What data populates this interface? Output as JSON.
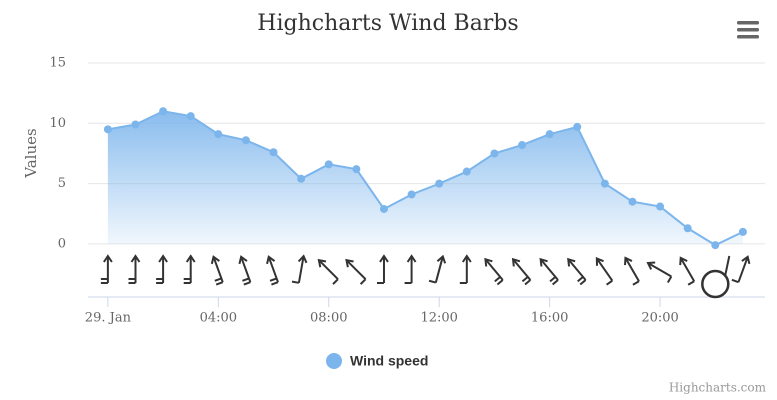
{
  "chart_data": {
    "type": "windbarb-area",
    "title": "Highcharts Wind Barbs",
    "y_label": "Values",
    "x": [
      0,
      1,
      2,
      3,
      4,
      5,
      6,
      7,
      8,
      9,
      10,
      11,
      12,
      13,
      14,
      15,
      16,
      17,
      18,
      19,
      20,
      21,
      22,
      23
    ],
    "series": [
      {
        "name": "Wind speed",
        "color": "#7cb5ec",
        "values": [
          9.5,
          9.9,
          11.0,
          10.6,
          9.1,
          8.6,
          7.6,
          5.4,
          6.6,
          6.2,
          2.9,
          4.1,
          5.0,
          6.0,
          7.5,
          8.2,
          9.1,
          9.7,
          5.0,
          3.5,
          3.1,
          1.3,
          -0.1,
          1.0
        ],
        "directions": [
          0,
          0,
          0,
          0,
          340,
          340,
          340,
          10,
          315,
          315,
          0,
          0,
          15,
          0,
          320,
          320,
          320,
          320,
          325,
          330,
          300,
          330,
          0,
          20
        ]
      }
    ],
    "xlim": [
      -0.72,
      23.8
    ],
    "ylim": [
      -4.4,
      15
    ],
    "yticks": [
      0,
      5,
      10,
      15
    ],
    "xticks": [
      {
        "value": 0,
        "label": "29. Jan"
      },
      {
        "value": 4,
        "label": "04:00"
      },
      {
        "value": 8,
        "label": "08:00"
      },
      {
        "value": 12,
        "label": "12:00"
      },
      {
        "value": 16,
        "label": "16:00"
      },
      {
        "value": 20,
        "label": "20:00"
      }
    ],
    "grid": true,
    "legend": "bottom",
    "credits": "Highcharts.com"
  }
}
